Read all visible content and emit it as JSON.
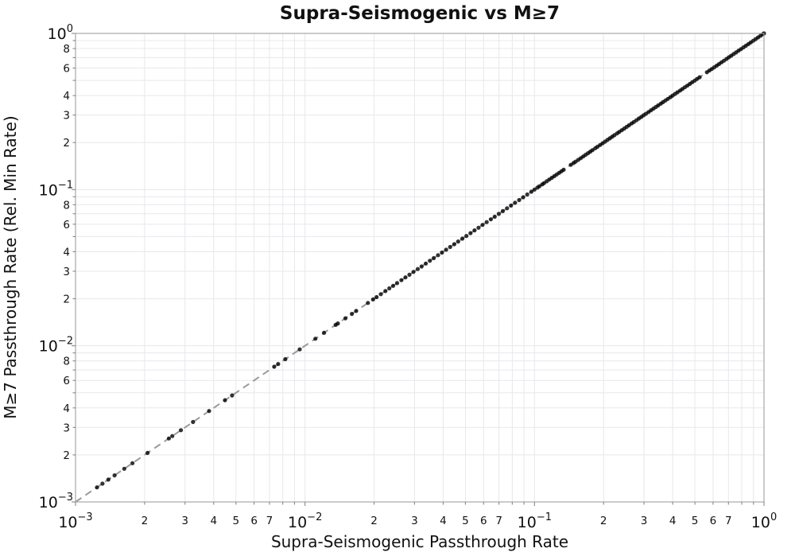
{
  "chart_data": {
    "type": "scatter",
    "title": "Supra-Seismogenic vs M≥7",
    "xlabel": "Supra-Seismogenic Passthrough Rate",
    "ylabel": "M≥7 Passthrough Rate (Rel. Min Rate)",
    "xscale": "log",
    "yscale": "log",
    "xlim": [
      0.001,
      1.0
    ],
    "ylim": [
      0.001,
      1.0
    ],
    "grid": true,
    "legend": "none",
    "major_tick_exponents": [
      -3,
      -2,
      -1,
      0
    ],
    "x_minor_labeled_subs": [
      2,
      3,
      4,
      5,
      6,
      7
    ],
    "y_minor_labeled_subs": [
      2,
      3,
      4,
      6,
      8
    ],
    "grid_color": "#e8e8eb",
    "spine_color": "#a8a8a8",
    "tick_color": "#888888",
    "minor_tick_label_color": "#3c3c3c",
    "identity_line": {
      "style": "dashed",
      "color": "#9a9a9a",
      "width": 2,
      "from": 0.001,
      "to": 1.0
    },
    "marker": {
      "shape": "circle",
      "color": "#000000",
      "opacity": 0.8,
      "radius": 2.6
    },
    "relation": "y = x (all points lie on the identity line)",
    "points_x_equals_y": [
      0.00124,
      0.00131,
      0.00139,
      0.00148,
      0.00163,
      0.00177,
      0.00206,
      0.00255,
      0.00264,
      0.00288,
      0.00325,
      0.00382,
      0.00448,
      0.00481,
      0.00734,
      0.00764,
      0.00821,
      0.00948,
      0.0111,
      0.0121,
      0.0136,
      0.0139,
      0.015,
      0.016,
      0.0167,
      0.0188,
      0.0198,
      0.0205,
      0.0214,
      0.0224,
      0.0233,
      0.0242,
      0.0252,
      0.0263,
      0.0274,
      0.0285,
      0.0297,
      0.031,
      0.0322,
      0.0336,
      0.035,
      0.0364,
      0.038,
      0.0395,
      0.0412,
      0.0429,
      0.0447,
      0.0465,
      0.0485,
      0.0505,
      0.0526,
      0.0548,
      0.057,
      0.0594,
      0.0619,
      0.0645,
      0.0671,
      0.0699,
      0.0728,
      0.0759,
      0.079,
      0.0823,
      0.0857,
      0.0893,
      0.093,
      0.0969,
      0.1,
      0.103,
      0.105,
      0.108,
      0.11,
      0.113,
      0.116,
      0.119,
      0.122,
      0.125,
      0.128,
      0.131,
      0.134,
      0.144,
      0.148,
      0.151,
      0.155,
      0.159,
      0.163,
      0.167,
      0.171,
      0.175,
      0.179,
      0.184,
      0.188,
      0.193,
      0.198,
      0.203,
      0.208,
      0.213,
      0.218,
      0.223,
      0.229,
      0.234,
      0.24,
      0.246,
      0.252,
      0.258,
      0.265,
      0.271,
      0.278,
      0.285,
      0.292,
      0.299,
      0.306,
      0.314,
      0.322,
      0.33,
      0.338,
      0.346,
      0.355,
      0.363,
      0.372,
      0.381,
      0.391,
      0.4,
      0.41,
      0.42,
      0.431,
      0.441,
      0.452,
      0.463,
      0.475,
      0.487,
      0.499,
      0.511,
      0.524,
      0.564,
      0.578,
      0.592,
      0.607,
      0.622,
      0.637,
      0.653,
      0.669,
      0.686,
      0.703,
      0.72,
      0.738,
      0.756,
      0.775,
      0.794,
      0.814,
      0.834,
      0.855,
      0.876,
      0.898,
      0.92,
      0.943,
      0.966,
      0.99,
      1.0
    ]
  }
}
